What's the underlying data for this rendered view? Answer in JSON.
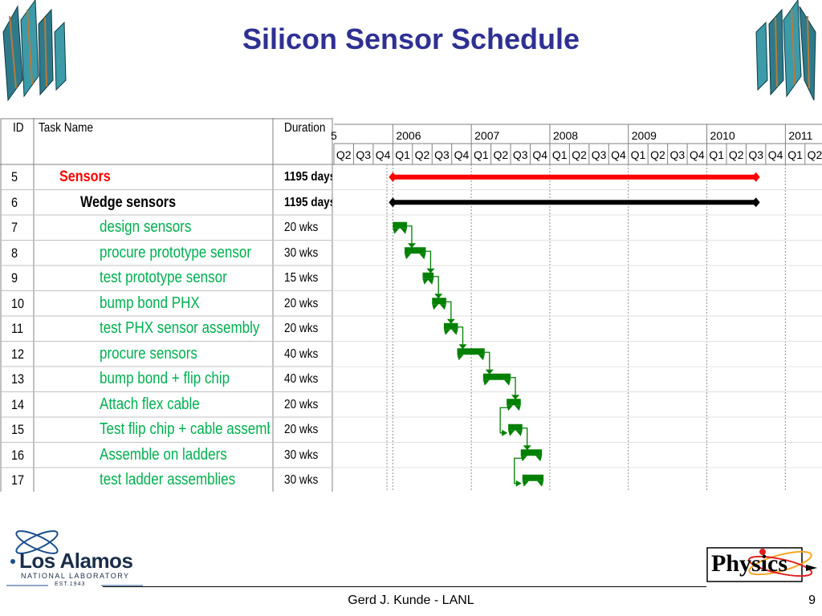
{
  "title": "Silicon Sensor Schedule",
  "table": {
    "headers": {
      "id": "ID",
      "task": "Task Name",
      "duration": "Duration"
    },
    "rows": [
      {
        "id": "5",
        "name": "Sensors",
        "duration": "1195 days",
        "level": 0,
        "color": "#ff0000",
        "start": 2006.0,
        "end": 2010.625,
        "type": "summary"
      },
      {
        "id": "6",
        "name": "Wedge sensors",
        "duration": "1195 days",
        "level": 1,
        "color": "#000000",
        "start": 2006.0,
        "end": 2010.625,
        "type": "summary"
      },
      {
        "id": "7",
        "name": "design sensors",
        "duration": "20 wks",
        "level": 2,
        "color": "#008000",
        "start": 2006.0,
        "end": 2006.18,
        "type": "task"
      },
      {
        "id": "8",
        "name": "procure prototype sensor",
        "duration": "30 wks",
        "level": 2,
        "color": "#008000",
        "start": 2006.15,
        "end": 2006.42,
        "type": "task"
      },
      {
        "id": "9",
        "name": "test prototype sensor",
        "duration": "15 wks",
        "level": 2,
        "color": "#008000",
        "start": 2006.38,
        "end": 2006.52,
        "type": "task"
      },
      {
        "id": "10",
        "name": "bump bond PHX",
        "duration": "20 wks",
        "level": 2,
        "color": "#008000",
        "start": 2006.5,
        "end": 2006.68,
        "type": "task"
      },
      {
        "id": "11",
        "name": "test PHX sensor assembly",
        "duration": "20 wks",
        "level": 2,
        "color": "#008000",
        "start": 2006.65,
        "end": 2006.83,
        "type": "task"
      },
      {
        "id": "12",
        "name": "procure sensors",
        "duration": "40 wks",
        "level": 2,
        "color": "#008000",
        "start": 2006.82,
        "end": 2007.17,
        "type": "task"
      },
      {
        "id": "13",
        "name": "bump bond + flip chip",
        "duration": "40 wks",
        "level": 2,
        "color": "#008000",
        "start": 2007.15,
        "end": 2007.5,
        "type": "task"
      },
      {
        "id": "14",
        "name": "Attach flex cable",
        "duration": "20 wks",
        "level": 2,
        "color": "#008000",
        "start": 2007.45,
        "end": 2007.63,
        "type": "task"
      },
      {
        "id": "15",
        "name": "Test flip chip + cable assemblies",
        "duration": "20 wks",
        "level": 2,
        "color": "#008000",
        "start": 2007.47,
        "end": 2007.65,
        "type": "task"
      },
      {
        "id": "16",
        "name": "Assemble on ladders",
        "duration": "30 wks",
        "level": 2,
        "color": "#008000",
        "start": 2007.63,
        "end": 2007.9,
        "type": "task"
      },
      {
        "id": "17",
        "name": "test ladder assemblies",
        "duration": "30 wks",
        "level": 2,
        "color": "#008000",
        "start": 2007.65,
        "end": 2007.92,
        "type": "task"
      }
    ]
  },
  "timeline": {
    "years": [
      "5",
      "2006",
      "2007",
      "2008",
      "2009",
      "2010",
      "2011"
    ],
    "quarters": [
      "Q2",
      "Q3",
      "Q4",
      "Q1",
      "Q2",
      "Q3",
      "Q4",
      "Q1",
      "Q2",
      "Q3",
      "Q4",
      "Q1",
      "Q2",
      "Q3",
      "Q4",
      "Q1",
      "Q2",
      "Q3",
      "Q4",
      "Q1",
      "Q2",
      "Q3",
      "Q4",
      "Q1",
      "Q2"
    ]
  },
  "footer": {
    "author": "Gerd J. Kunde - LANL",
    "page": "9"
  },
  "logos": {
    "lanl_name": "Los Alamos",
    "lanl_sub": "NATIONAL LABORATORY",
    "lanl_est": "EST.1943",
    "physics": "Physics"
  },
  "colors": {
    "title": "#2e3192",
    "task_text": "#00b050",
    "summary_red": "#ff0000",
    "bar_green": "#008000"
  }
}
